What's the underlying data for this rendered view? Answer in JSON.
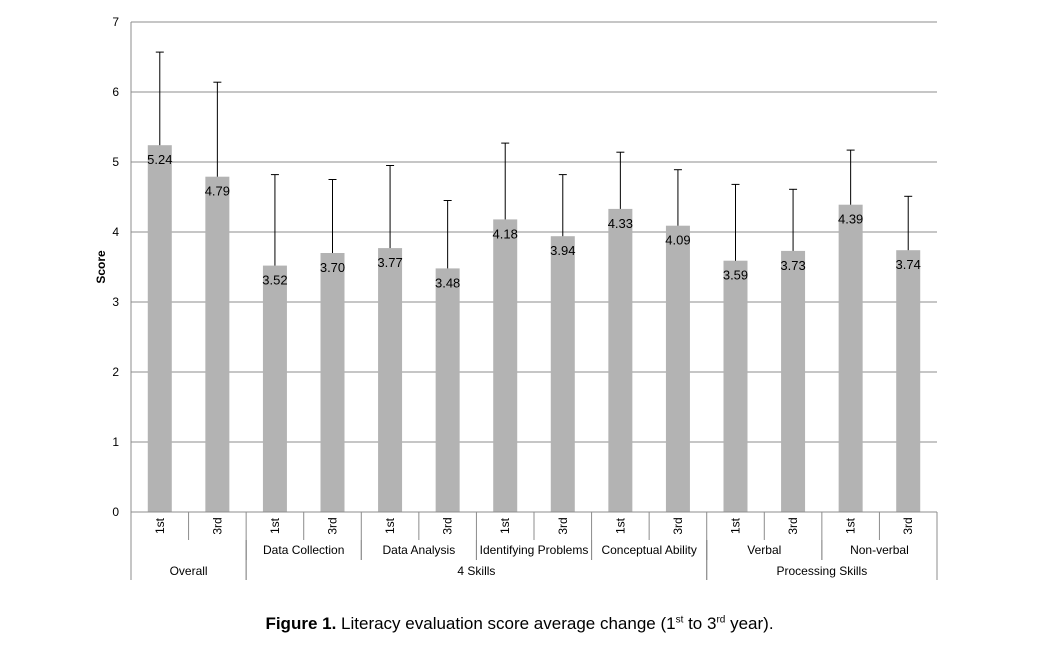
{
  "chart_data": {
    "type": "bar",
    "ylabel": "Score",
    "ylim": [
      0,
      7
    ],
    "yticks": [
      0,
      1,
      2,
      3,
      4,
      5,
      6,
      7
    ],
    "grid": true,
    "bar_color": "#b3b3b3",
    "categories": [
      "1st",
      "3rd",
      "1st",
      "3rd",
      "1st",
      "3rd",
      "1st",
      "3rd",
      "1st",
      "3rd",
      "1st",
      "3rd",
      "1st",
      "3rd"
    ],
    "values": [
      5.24,
      4.79,
      3.52,
      3.7,
      3.77,
      3.48,
      4.18,
      3.94,
      4.33,
      4.09,
      3.59,
      3.73,
      4.39,
      3.74
    ],
    "value_labels": [
      "5.24",
      "4.79",
      "3.52",
      "3.70",
      "3.77",
      "3.48",
      "4.18",
      "3.94",
      "4.33",
      "4.09",
      "3.59",
      "3.73",
      "4.39",
      "3.74"
    ],
    "error_upper": [
      6.57,
      6.14,
      4.82,
      4.75,
      4.95,
      4.45,
      5.27,
      4.82,
      5.14,
      4.89,
      4.68,
      4.61,
      5.17,
      4.51
    ],
    "subgroups": [
      {
        "label": "",
        "span": [
          0,
          1
        ]
      },
      {
        "label": "Data Collection",
        "span": [
          2,
          3
        ]
      },
      {
        "label": "Data Analysis",
        "span": [
          4,
          5
        ]
      },
      {
        "label": "Identifying Problems",
        "span": [
          6,
          7
        ]
      },
      {
        "label": "Conceptual Ability",
        "span": [
          8,
          9
        ]
      },
      {
        "label": "Verbal",
        "span": [
          10,
          11
        ]
      },
      {
        "label": "Non-verbal",
        "span": [
          12,
          13
        ]
      }
    ],
    "groups": [
      {
        "label": "Overall",
        "span": [
          0,
          1
        ]
      },
      {
        "label": "4 Skills",
        "span": [
          2,
          9
        ]
      },
      {
        "label": "Processing Skills",
        "span": [
          10,
          13
        ]
      }
    ]
  },
  "caption": {
    "figure": "Figure 1.",
    "text_a": " Literacy evaluation score average change (1",
    "sup_a": "st",
    "text_b": " to 3",
    "sup_b": "rd",
    "text_c": " year)."
  }
}
